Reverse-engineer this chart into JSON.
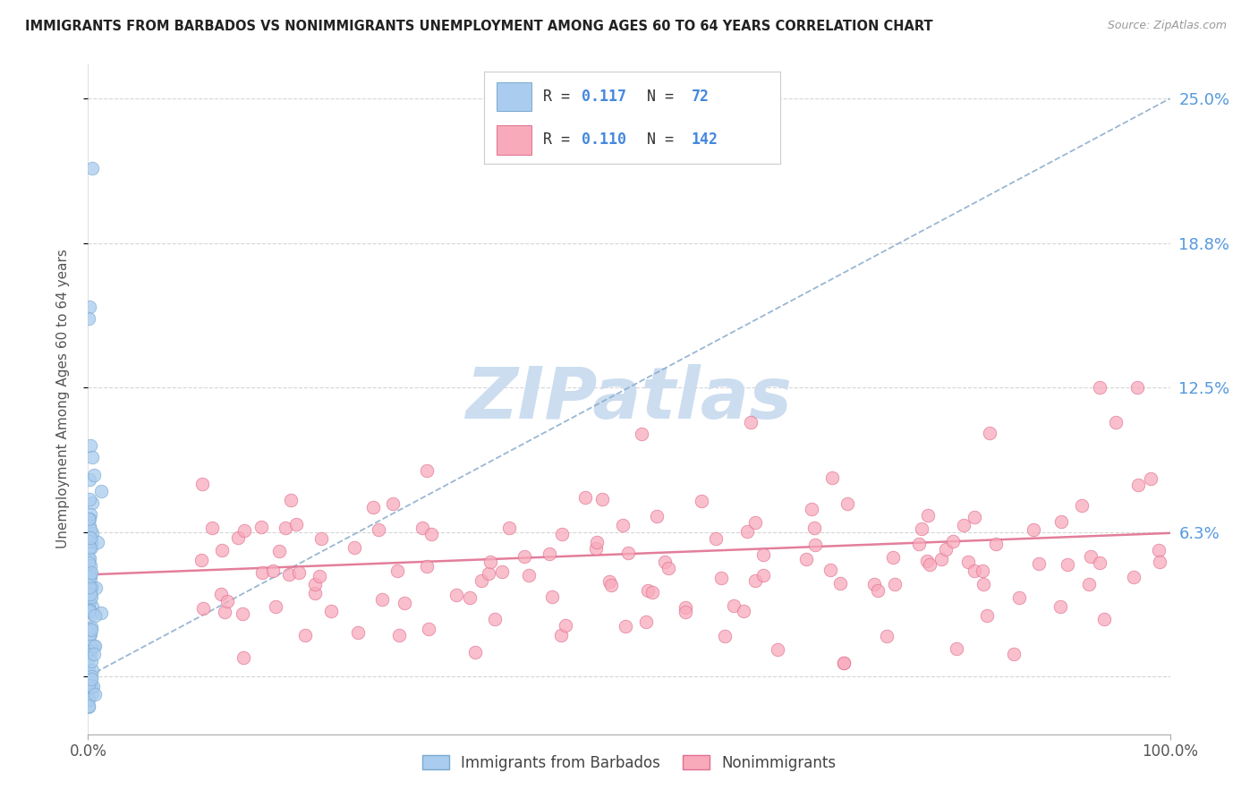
{
  "title": "IMMIGRANTS FROM BARBADOS VS NONIMMIGRANTS UNEMPLOYMENT AMONG AGES 60 TO 64 YEARS CORRELATION CHART",
  "source": "Source: ZipAtlas.com",
  "ylabel": "Unemployment Among Ages 60 to 64 years",
  "xlim": [
    0.0,
    1.0
  ],
  "ylim": [
    -0.025,
    0.265
  ],
  "yticks": [
    0.0,
    0.0625,
    0.125,
    0.1875,
    0.25
  ],
  "ytick_labels": [
    "",
    "6.3%",
    "12.5%",
    "18.8%",
    "25.0%"
  ],
  "xtick_labels": [
    "0.0%",
    "100.0%"
  ],
  "xticks": [
    0.0,
    1.0
  ],
  "blue_color": "#aaccee",
  "blue_edge_color": "#7aaad0",
  "blue_trend_color": "#88aacc",
  "pink_color": "#f8aabb",
  "pink_edge_color": "#e07090",
  "pink_trend_color": "#e07090",
  "grid_color": "#cccccc",
  "right_label_color": "#5599dd",
  "watermark_color": "#ccddf0",
  "legend_text_color": "#333333",
  "legend_value_color": "#4488dd",
  "blue_r": "0.117",
  "blue_n": "72",
  "pink_r": "0.110",
  "pink_n": "142"
}
